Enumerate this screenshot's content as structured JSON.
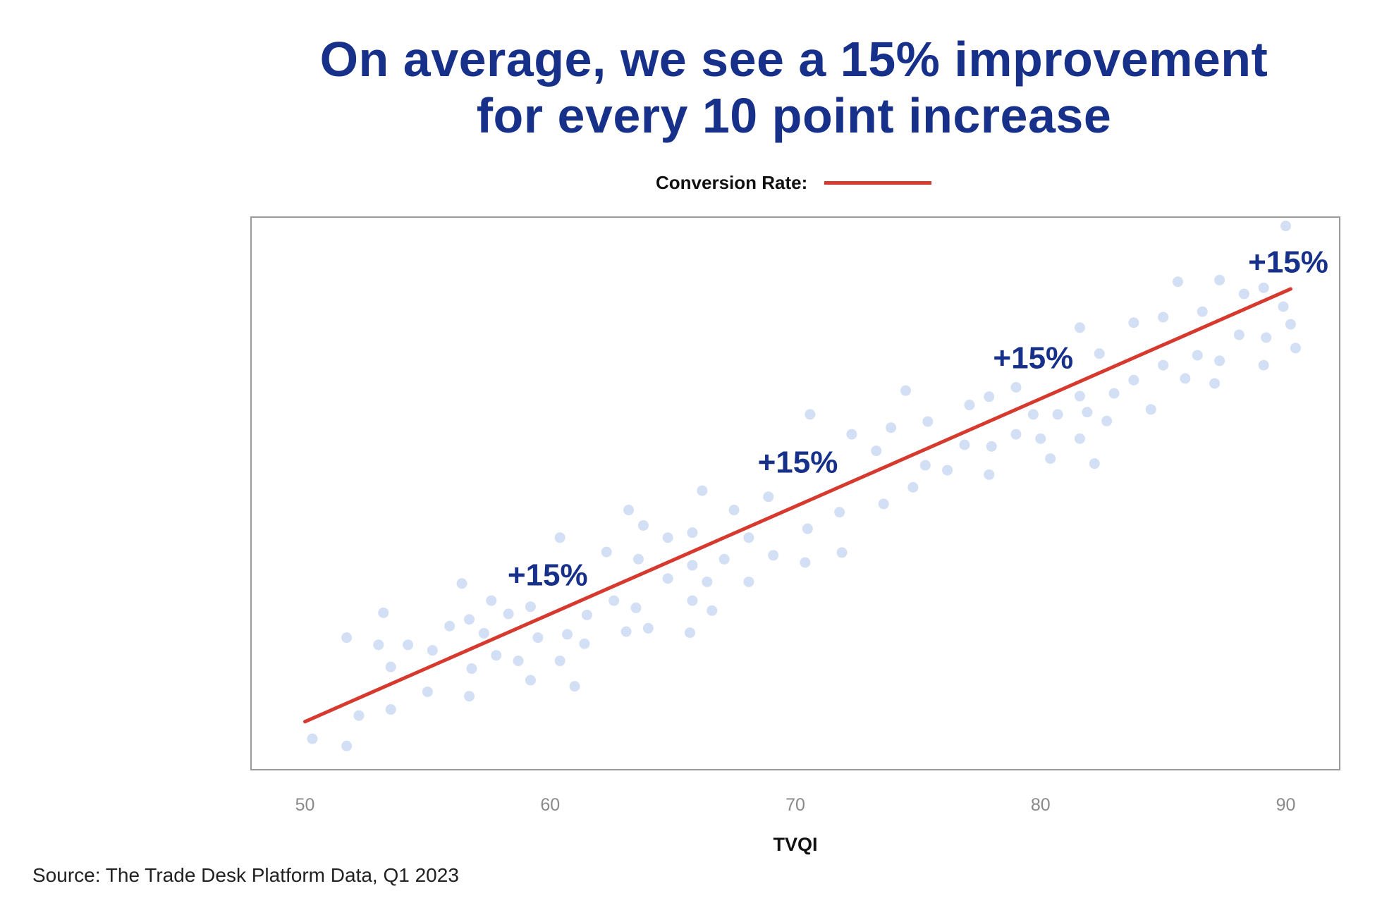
{
  "title": {
    "line1": "On average, we see a 15% improvement",
    "line2": "for every 10 point increase"
  },
  "legend": {
    "label": "Conversion Rate:"
  },
  "source": "Source: The Trade Desk Platform Data, Q1 2023",
  "colors": {
    "title": "#17308a",
    "line": "#d63a2f",
    "dots": "#d3dff4",
    "axis_frame": "#9a9a9a",
    "tick": "#8a8a8a",
    "annotation": "#17308a"
  },
  "chart_data": {
    "type": "scatter",
    "title": "On average, we see a 15% improvement for every 10 point increase",
    "xlabel": "TVQI",
    "ylabel": "",
    "xlim": [
      47.8,
      92.2
    ],
    "ylim": [
      0,
      100
    ],
    "xticks": [
      50,
      60,
      70,
      80,
      90
    ],
    "grid": false,
    "legend": {
      "position": "top-center",
      "entries": [
        {
          "name": "Conversion Rate:",
          "type": "line"
        }
      ]
    },
    "points": [
      [
        50.3,
        5.6
      ],
      [
        51.7,
        4.3
      ],
      [
        51.7,
        23.9
      ],
      [
        52.2,
        9.8
      ],
      [
        53.0,
        22.6
      ],
      [
        53.2,
        28.4
      ],
      [
        53.5,
        18.6
      ],
      [
        53.5,
        10.9
      ],
      [
        54.2,
        22.6
      ],
      [
        55.0,
        14.1
      ],
      [
        55.2,
        21.6
      ],
      [
        55.9,
        26.0
      ],
      [
        56.4,
        33.7
      ],
      [
        56.7,
        27.2
      ],
      [
        56.8,
        18.3
      ],
      [
        56.7,
        13.3
      ],
      [
        57.3,
        24.7
      ],
      [
        57.6,
        30.6
      ],
      [
        57.8,
        20.7
      ],
      [
        58.3,
        28.2
      ],
      [
        58.7,
        19.7
      ],
      [
        59.2,
        29.5
      ],
      [
        59.2,
        16.2
      ],
      [
        59.5,
        23.9
      ],
      [
        60.4,
        42.0
      ],
      [
        60.4,
        19.7
      ],
      [
        60.7,
        24.5
      ],
      [
        61.0,
        15.1
      ],
      [
        61.4,
        22.8
      ],
      [
        61.5,
        28.0
      ],
      [
        62.3,
        39.4
      ],
      [
        62.6,
        30.6
      ],
      [
        63.1,
        25.0
      ],
      [
        63.2,
        47.0
      ],
      [
        63.5,
        29.3
      ],
      [
        63.6,
        38.1
      ],
      [
        63.8,
        44.2
      ],
      [
        64.0,
        25.6
      ],
      [
        64.8,
        42.0
      ],
      [
        64.8,
        34.6
      ],
      [
        65.7,
        24.8
      ],
      [
        65.8,
        37.0
      ],
      [
        65.8,
        42.9
      ],
      [
        65.8,
        30.6
      ],
      [
        66.2,
        50.5
      ],
      [
        66.4,
        34.0
      ],
      [
        66.6,
        28.8
      ],
      [
        67.1,
        38.1
      ],
      [
        67.5,
        47.0
      ],
      [
        68.1,
        42.0
      ],
      [
        68.1,
        34.0
      ],
      [
        68.9,
        49.4
      ],
      [
        69.1,
        38.8
      ],
      [
        70.4,
        37.5
      ],
      [
        70.5,
        43.6
      ],
      [
        70.6,
        64.3
      ],
      [
        71.8,
        46.6
      ],
      [
        71.9,
        39.3
      ],
      [
        72.3,
        60.7
      ],
      [
        73.3,
        57.7
      ],
      [
        73.6,
        48.1
      ],
      [
        73.9,
        61.9
      ],
      [
        74.5,
        68.6
      ],
      [
        74.8,
        51.1
      ],
      [
        75.3,
        55.1
      ],
      [
        75.4,
        63.0
      ],
      [
        76.2,
        54.2
      ],
      [
        76.9,
        58.8
      ],
      [
        77.1,
        66.0
      ],
      [
        77.9,
        53.4
      ],
      [
        78.0,
        58.5
      ],
      [
        77.9,
        67.5
      ],
      [
        79.0,
        69.2
      ],
      [
        79.0,
        60.7
      ],
      [
        79.7,
        64.3
      ],
      [
        80.0,
        59.9
      ],
      [
        80.4,
        56.3
      ],
      [
        80.7,
        64.3
      ],
      [
        81.6,
        80.0
      ],
      [
        81.6,
        67.6
      ],
      [
        81.6,
        59.9
      ],
      [
        81.9,
        64.7
      ],
      [
        82.2,
        55.4
      ],
      [
        82.4,
        75.3
      ],
      [
        82.7,
        63.1
      ],
      [
        83.0,
        68.1
      ],
      [
        83.8,
        80.9
      ],
      [
        83.8,
        70.5
      ],
      [
        84.5,
        65.2
      ],
      [
        85.0,
        81.9
      ],
      [
        85.0,
        73.2
      ],
      [
        85.6,
        88.3
      ],
      [
        85.9,
        70.8
      ],
      [
        86.4,
        75.0
      ],
      [
        86.6,
        82.9
      ],
      [
        87.1,
        69.9
      ],
      [
        87.3,
        88.6
      ],
      [
        87.3,
        74.0
      ],
      [
        88.1,
        78.7
      ],
      [
        88.3,
        86.1
      ],
      [
        89.1,
        87.2
      ],
      [
        89.1,
        73.2
      ],
      [
        89.2,
        78.2
      ],
      [
        89.9,
        83.8
      ],
      [
        90.0,
        98.4
      ],
      [
        90.2,
        80.6
      ],
      [
        90.4,
        76.3
      ]
    ],
    "series": [
      {
        "name": "Conversion Rate",
        "type": "line",
        "x": [
          50.0,
          90.2
        ],
        "y": [
          8.7,
          87.0
        ]
      }
    ],
    "annotations": [
      {
        "text": "+15%",
        "x": 59.9,
        "y": 35.4
      },
      {
        "text": "+15%",
        "x": 70.1,
        "y": 55.8
      },
      {
        "text": "+15%",
        "x": 79.7,
        "y": 74.7
      },
      {
        "text": "+15%",
        "x": 90.1,
        "y": 92.0
      }
    ]
  }
}
